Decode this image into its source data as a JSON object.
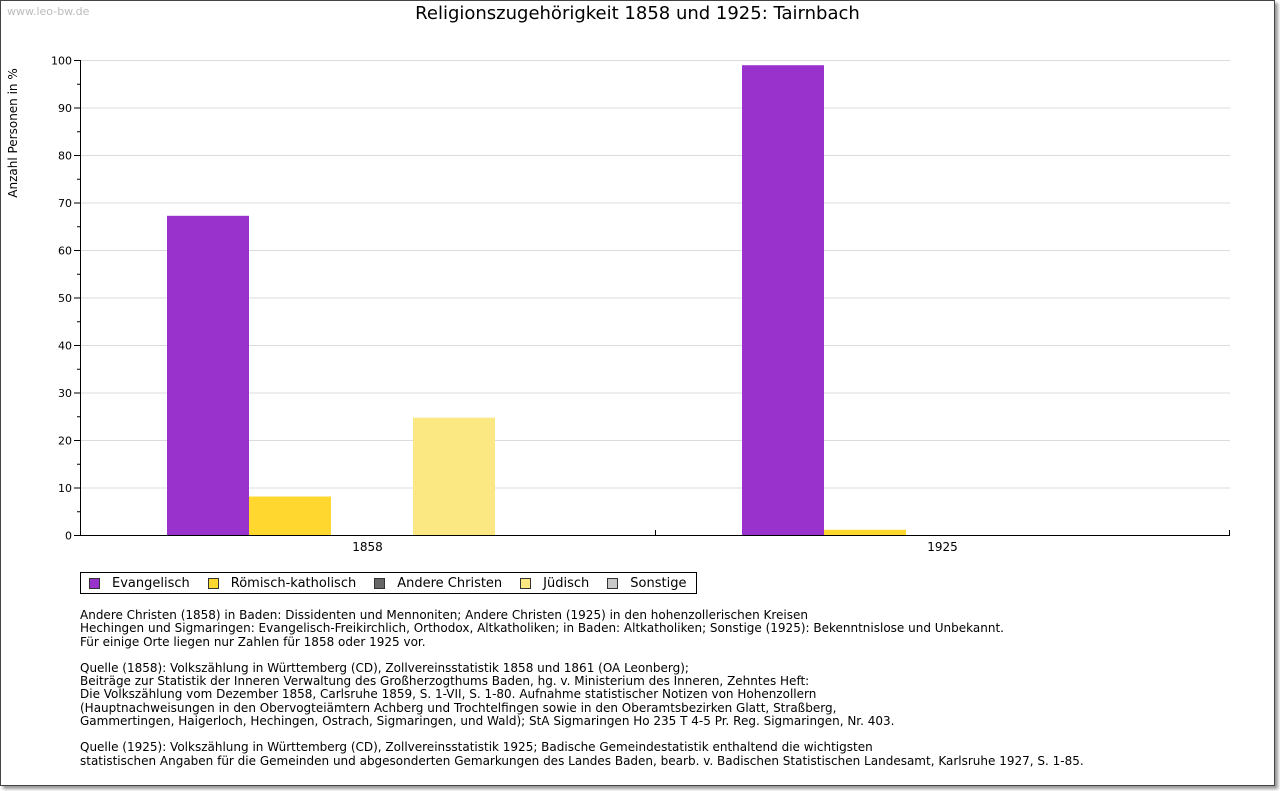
{
  "watermark": "www.leo-bw.de",
  "chart_data": {
    "type": "bar",
    "title": "Religionszugehörigkeit 1858 und 1925: Tairnbach",
    "xlabel": "",
    "ylabel": "Anzahl Personen in %",
    "ylim": [
      0,
      100
    ],
    "yticks": [
      0,
      10,
      20,
      30,
      40,
      50,
      60,
      70,
      80,
      90,
      100
    ],
    "grid": true,
    "legend_position": "bottom",
    "categories": [
      "1858",
      "1925"
    ],
    "series": [
      {
        "name": "Evangelisch",
        "color": "#9932cc",
        "values": [
          67.2,
          98.9
        ]
      },
      {
        "name": "Römisch-katholisch",
        "color": "#ffd72e",
        "values": [
          8.1,
          1.1
        ]
      },
      {
        "name": "Andere Christen",
        "color": "#666666",
        "values": [
          0,
          0
        ]
      },
      {
        "name": "Jüdisch",
        "color": "#fce883",
        "values": [
          24.7,
          0
        ]
      },
      {
        "name": "Sonstige",
        "color": "#c8c8c8",
        "values": [
          0,
          0
        ]
      }
    ]
  },
  "notes": [
    [
      "Andere Christen (1858) in Baden: Dissidenten und Mennoniten; Andere Christen (1925) in den hohenzollerischen Kreisen",
      "Hechingen und Sigmaringen: Evangelisch-Freikirchlich, Orthodox, Altkatholiken; in Baden: Altkatholiken; Sonstige (1925): Bekenntnislose und Unbekannt.",
      "Für einige Orte liegen nur Zahlen für 1858 oder 1925 vor."
    ],
    [
      "Quelle (1858): Volkszählung in Württemberg (CD), Zollvereinsstatistik 1858 und 1861 (OA Leonberg);",
      "Beiträge zur Statistik der Inneren Verwaltung des Großherzogthums Baden, hg. v. Ministerium des Inneren, Zehntes Heft:",
      "Die Volkszählung vom Dezember 1858, Carlsruhe 1859, S. 1-VII, S. 1-80. Aufnahme statistischer Notizen von Hohenzollern",
      "(Hauptnachweisungen in den Obervogteiämtern Achberg und Trochtelfingen sowie in den Oberamtsbezirken Glatt, Straßberg,",
      "Gammertingen, Haigerloch, Hechingen, Ostrach, Sigmaringen, und Wald); StA Sigmaringen Ho 235 T 4-5 Pr. Reg. Sigmaringen, Nr. 403."
    ],
    [
      "Quelle (1925): Volkszählung in Württemberg (CD), Zollvereinsstatistik 1925; Badische Gemeindestatistik enthaltend die wichtigsten",
      "statistischen Angaben für die Gemeinden und abgesonderten Gemarkungen des Landes Baden, bearb. v. Badischen Statistischen Landesamt, Karlsruhe 1927, S. 1-85."
    ]
  ]
}
